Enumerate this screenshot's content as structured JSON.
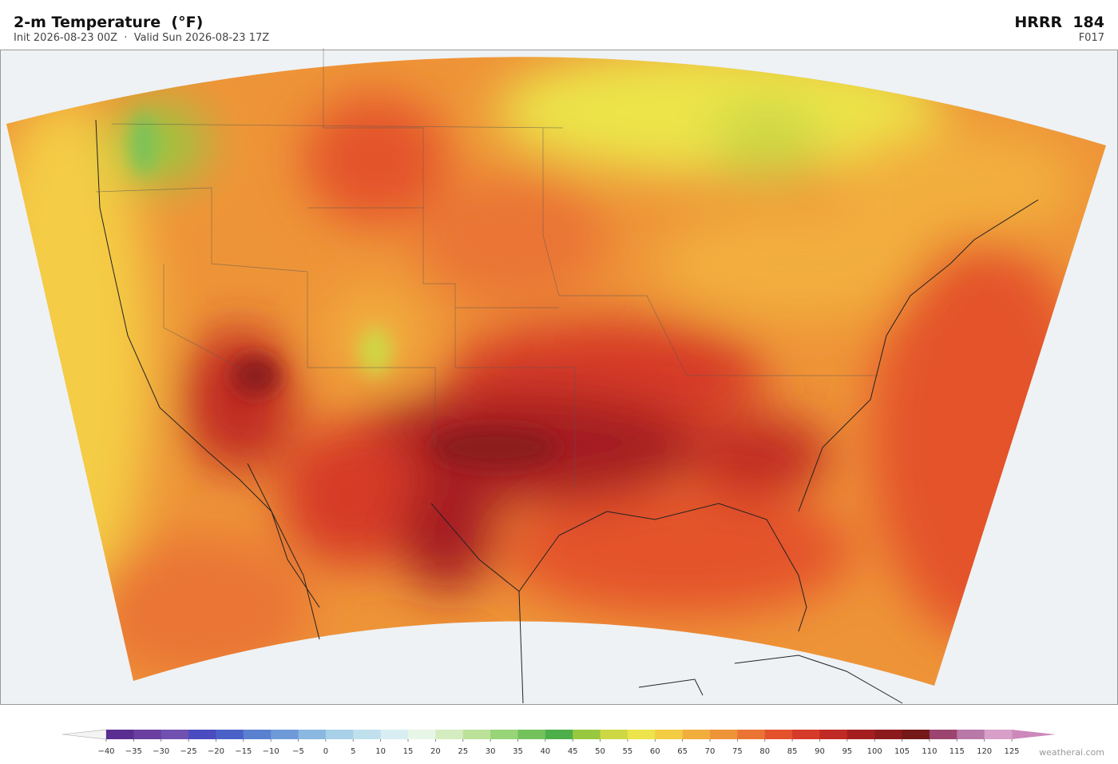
{
  "header": {
    "title": "2-m Temperature  (°F)",
    "subtitle": "Init 2026-08-23 00Z  ·  Valid Sun 2026-08-23 17Z",
    "model": "HRRR  184",
    "forecast_hour": "F017"
  },
  "colorbar": {
    "ticks": [
      {
        "value": -40,
        "label": "−40"
      },
      {
        "value": -35,
        "label": "−35"
      },
      {
        "value": -30,
        "label": "−30"
      },
      {
        "value": -25,
        "label": "−25"
      },
      {
        "value": -20,
        "label": "−20"
      },
      {
        "value": -15,
        "label": "−15"
      },
      {
        "value": -10,
        "label": "−10"
      },
      {
        "value": -5,
        "label": "−5"
      },
      0,
      5,
      10,
      15,
      20,
      25,
      30,
      35,
      40,
      45,
      50,
      55,
      60,
      65,
      70,
      75,
      80,
      85,
      90,
      95,
      100,
      105,
      110,
      115,
      120,
      125
    ],
    "colors": [
      "#5a2d91",
      "#6a3fa0",
      "#7050b0",
      "#4a4bc0",
      "#4a62c8",
      "#5a80d0",
      "#6e9ad8",
      "#8ab8e0",
      "#a8d0e8",
      "#c0e0ee",
      "#d8eef2",
      "#e8f6e8",
      "#d4ecc0",
      "#bce29a",
      "#98d478",
      "#74c25c",
      "#4caf4a",
      "#98c840",
      "#cdd844",
      "#ece44a",
      "#f4cc44",
      "#f2ae3c",
      "#ee9438",
      "#ea7434",
      "#e4522c",
      "#d63a28",
      "#c02a24",
      "#a41e20",
      "#8c1a1c",
      "#741818",
      "#9c4470",
      "#b878a8",
      "#d8a0c8"
    ],
    "under_color": "#f4f4f4",
    "over_color": "#cc88bb"
  },
  "credit": "weatherai.com"
}
